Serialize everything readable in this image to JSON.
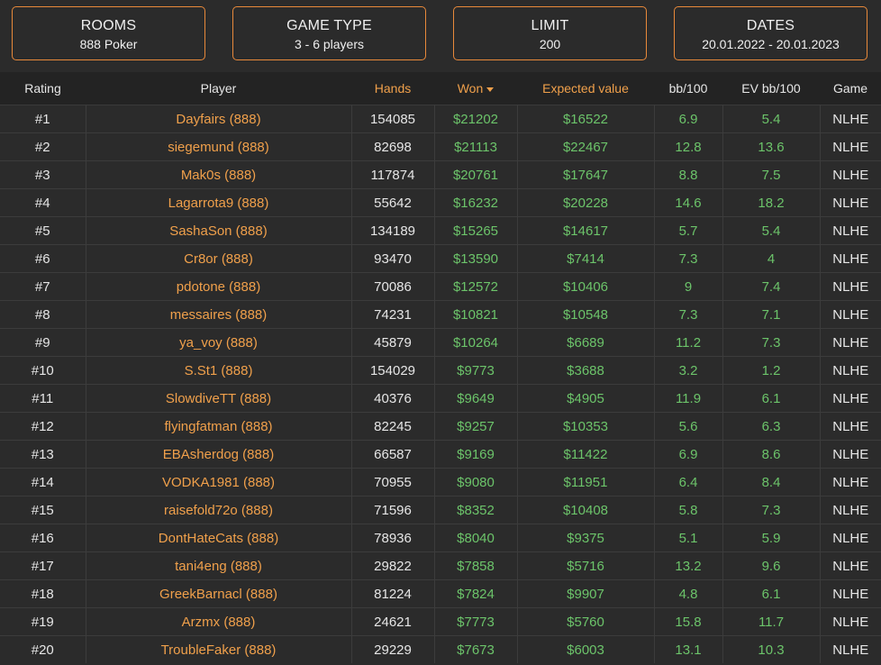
{
  "filters": [
    {
      "title": "ROOMS",
      "value": "888 Poker"
    },
    {
      "title": "GAME TYPE",
      "value": "3 - 6 players"
    },
    {
      "title": "LIMIT",
      "value": "200"
    },
    {
      "title": "DATES",
      "value": "20.01.2022 - 20.01.2023"
    }
  ],
  "columns": {
    "rating": "Rating",
    "player": "Player",
    "hands": "Hands",
    "won": "Won",
    "ev": "Expected value",
    "bb100": "bb/100",
    "evbb100": "EV bb/100",
    "game": "Game"
  },
  "rows": [
    {
      "rating": "#1",
      "player": "Dayfairs (888)",
      "hands": "154085",
      "won": "$21202",
      "ev": "$16522",
      "bb100": "6.9",
      "evbb100": "5.4",
      "game": "NLHE"
    },
    {
      "rating": "#2",
      "player": "siegemund (888)",
      "hands": "82698",
      "won": "$21113",
      "ev": "$22467",
      "bb100": "12.8",
      "evbb100": "13.6",
      "game": "NLHE"
    },
    {
      "rating": "#3",
      "player": "Mak0s (888)",
      "hands": "117874",
      "won": "$20761",
      "ev": "$17647",
      "bb100": "8.8",
      "evbb100": "7.5",
      "game": "NLHE"
    },
    {
      "rating": "#4",
      "player": "Lagarrota9 (888)",
      "hands": "55642",
      "won": "$16232",
      "ev": "$20228",
      "bb100": "14.6",
      "evbb100": "18.2",
      "game": "NLHE"
    },
    {
      "rating": "#5",
      "player": "SashaSon (888)",
      "hands": "134189",
      "won": "$15265",
      "ev": "$14617",
      "bb100": "5.7",
      "evbb100": "5.4",
      "game": "NLHE"
    },
    {
      "rating": "#6",
      "player": "Cr8or (888)",
      "hands": "93470",
      "won": "$13590",
      "ev": "$7414",
      "bb100": "7.3",
      "evbb100": "4",
      "game": "NLHE"
    },
    {
      "rating": "#7",
      "player": "pdotone (888)",
      "hands": "70086",
      "won": "$12572",
      "ev": "$10406",
      "bb100": "9",
      "evbb100": "7.4",
      "game": "NLHE"
    },
    {
      "rating": "#8",
      "player": "messaires (888)",
      "hands": "74231",
      "won": "$10821",
      "ev": "$10548",
      "bb100": "7.3",
      "evbb100": "7.1",
      "game": "NLHE"
    },
    {
      "rating": "#9",
      "player": "ya_voy (888)",
      "hands": "45879",
      "won": "$10264",
      "ev": "$6689",
      "bb100": "11.2",
      "evbb100": "7.3",
      "game": "NLHE"
    },
    {
      "rating": "#10",
      "player": "S.St1 (888)",
      "hands": "154029",
      "won": "$9773",
      "ev": "$3688",
      "bb100": "3.2",
      "evbb100": "1.2",
      "game": "NLHE"
    },
    {
      "rating": "#11",
      "player": "SlowdiveTT (888)",
      "hands": "40376",
      "won": "$9649",
      "ev": "$4905",
      "bb100": "11.9",
      "evbb100": "6.1",
      "game": "NLHE"
    },
    {
      "rating": "#12",
      "player": "flyingfatman (888)",
      "hands": "82245",
      "won": "$9257",
      "ev": "$10353",
      "bb100": "5.6",
      "evbb100": "6.3",
      "game": "NLHE"
    },
    {
      "rating": "#13",
      "player": "EBAsherdog (888)",
      "hands": "66587",
      "won": "$9169",
      "ev": "$11422",
      "bb100": "6.9",
      "evbb100": "8.6",
      "game": "NLHE"
    },
    {
      "rating": "#14",
      "player": "VODKA1981 (888)",
      "hands": "70955",
      "won": "$9080",
      "ev": "$11951",
      "bb100": "6.4",
      "evbb100": "8.4",
      "game": "NLHE"
    },
    {
      "rating": "#15",
      "player": "raisefold72o (888)",
      "hands": "71596",
      "won": "$8352",
      "ev": "$10408",
      "bb100": "5.8",
      "evbb100": "7.3",
      "game": "NLHE"
    },
    {
      "rating": "#16",
      "player": "DontHateCats (888)",
      "hands": "78936",
      "won": "$8040",
      "ev": "$9375",
      "bb100": "5.1",
      "evbb100": "5.9",
      "game": "NLHE"
    },
    {
      "rating": "#17",
      "player": "tani4eng (888)",
      "hands": "29822",
      "won": "$7858",
      "ev": "$5716",
      "bb100": "13.2",
      "evbb100": "9.6",
      "game": "NLHE"
    },
    {
      "rating": "#18",
      "player": "GreekBarnacl (888)",
      "hands": "81224",
      "won": "$7824",
      "ev": "$9907",
      "bb100": "4.8",
      "evbb100": "6.1",
      "game": "NLHE"
    },
    {
      "rating": "#19",
      "player": "Arzmx (888)",
      "hands": "24621",
      "won": "$7773",
      "ev": "$5760",
      "bb100": "15.8",
      "evbb100": "11.7",
      "game": "NLHE"
    },
    {
      "rating": "#20",
      "player": "TroubleFaker (888)",
      "hands": "29229",
      "won": "$7673",
      "ev": "$6003",
      "bb100": "13.1",
      "evbb100": "10.3",
      "game": "NLHE"
    }
  ]
}
